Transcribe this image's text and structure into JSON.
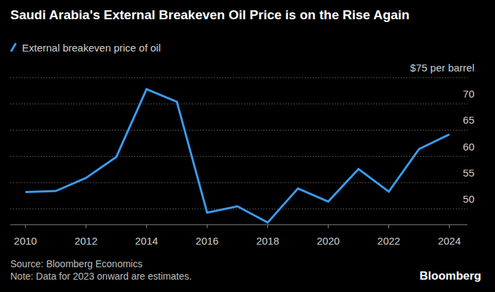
{
  "chart_data": {
    "type": "line",
    "title": "Saudi Arabia's External Breakeven Oil Price is on the Rise Again",
    "x": [
      2010,
      2011,
      2012,
      2013,
      2014,
      2015,
      2016,
      2017,
      2018,
      2019,
      2020,
      2021,
      2022,
      2023,
      2024
    ],
    "series": [
      {
        "name": "External breakeven price of oil",
        "color": "#3a9df5",
        "values": [
          53.2,
          53.4,
          55.9,
          59.9,
          72.8,
          70.4,
          49.3,
          50.5,
          47.4,
          53.9,
          51.4,
          57.6,
          53.3,
          61.4,
          64.2
        ]
      }
    ],
    "xlim": [
      2009.5,
      2024.6
    ],
    "xticks": [
      2010,
      2012,
      2014,
      2016,
      2018,
      2020,
      2022,
      2024
    ],
    "ylim": [
      47,
      75
    ],
    "yticks": [
      50,
      55,
      60,
      65,
      70,
      {
        "value": 75,
        "label": "$75 per barrel"
      }
    ],
    "grid": true,
    "legend": "top-left",
    "source": "Source: Bloomberg Economics",
    "note": "Note: Data for 2023 onward are estimates.",
    "credit": "Bloomberg"
  }
}
